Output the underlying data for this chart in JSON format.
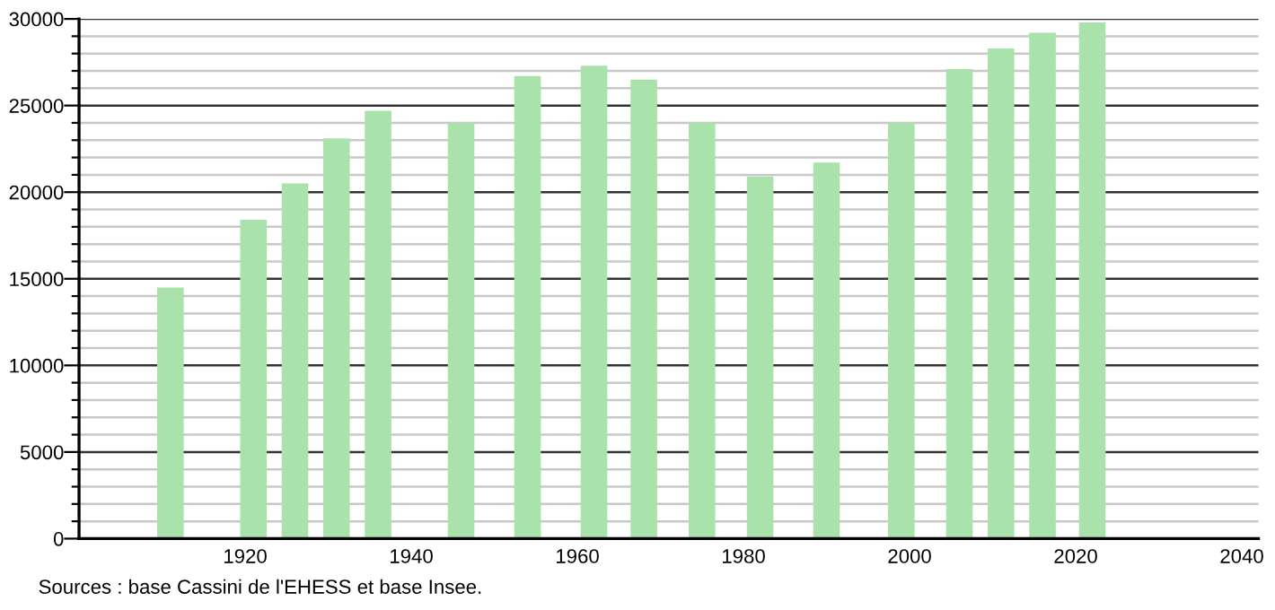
{
  "chart_data": {
    "type": "bar",
    "x": [
      1911,
      1921,
      1926,
      1931,
      1936,
      1946,
      1954,
      1962,
      1968,
      1975,
      1982,
      1990,
      1999,
      2006,
      2011,
      2016,
      2022
    ],
    "values": [
      14500,
      18400,
      20500,
      23100,
      24700,
      24000,
      26700,
      27300,
      26500,
      24000,
      20900,
      21700,
      24000,
      27100,
      28300,
      29200,
      29800
    ],
    "color": "#a9e2ab",
    "xlim": [
      1900,
      2042
    ],
    "xticks": [
      1920,
      1940,
      1960,
      1980,
      2000,
      2020,
      2040
    ],
    "ylim": [
      0,
      30000
    ],
    "yticks": [
      0,
      {
        "value": 1000,
        "label": null
      },
      {
        "value": 2000,
        "label": null
      },
      {
        "value": 3000,
        "label": null
      },
      {
        "value": 4000,
        "label": null
      },
      5000,
      {
        "value": 6000,
        "label": null
      },
      {
        "value": 7000,
        "label": null
      },
      {
        "value": 8000,
        "label": null
      },
      {
        "value": 9000,
        "label": null
      },
      10000,
      {
        "value": 11000,
        "label": null
      },
      {
        "value": 12000,
        "label": null
      },
      {
        "value": 13000,
        "label": null
      },
      {
        "value": 14000,
        "label": null
      },
      15000,
      {
        "value": 16000,
        "label": null
      },
      {
        "value": 17000,
        "label": null
      },
      {
        "value": 18000,
        "label": null
      },
      {
        "value": 19000,
        "label": null
      },
      20000,
      {
        "value": 21000,
        "label": null
      },
      {
        "value": 22000,
        "label": null
      },
      {
        "value": 23000,
        "label": null
      },
      {
        "value": 24000,
        "label": null
      },
      25000,
      {
        "value": 26000,
        "label": null
      },
      {
        "value": 27000,
        "label": null
      },
      {
        "value": 28000,
        "label": null
      },
      {
        "value": 29000,
        "label": null
      },
      30000
    ],
    "grid": "y",
    "annotations": [
      "Sources : base Cassini de l'EHESS et base Insee."
    ]
  }
}
